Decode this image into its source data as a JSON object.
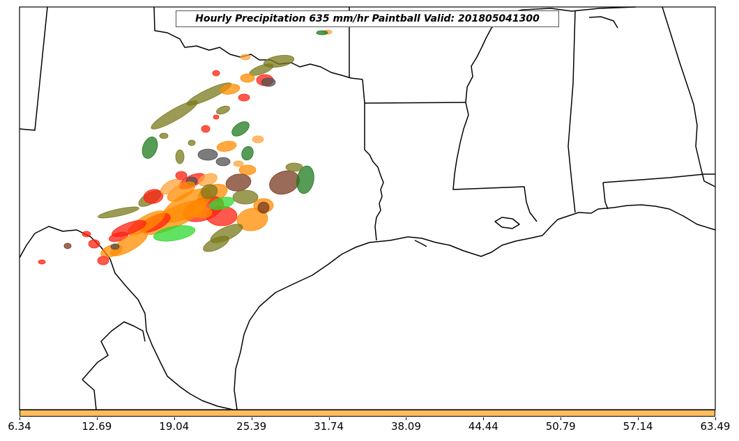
{
  "title": "Hourly Precipitation 635 mm/hr Paintball Valid: 201805041300",
  "colorbar": {
    "fill_color": "#ffbe5e",
    "ticks": [
      "6.34",
      "12.69",
      "19.04",
      "25.39",
      "31.74",
      "38.09",
      "44.44",
      "50.79",
      "57.14",
      "63.49"
    ]
  },
  "palette": {
    "red": "#ff2010",
    "orange": "#ff8c00",
    "light_orange": "#ffa33a",
    "olive": "#7a7a1e",
    "dark_green": "#1e7a1e",
    "green": "#2ed82e",
    "gray": "#505050",
    "brown": "#7a3a22"
  }
}
